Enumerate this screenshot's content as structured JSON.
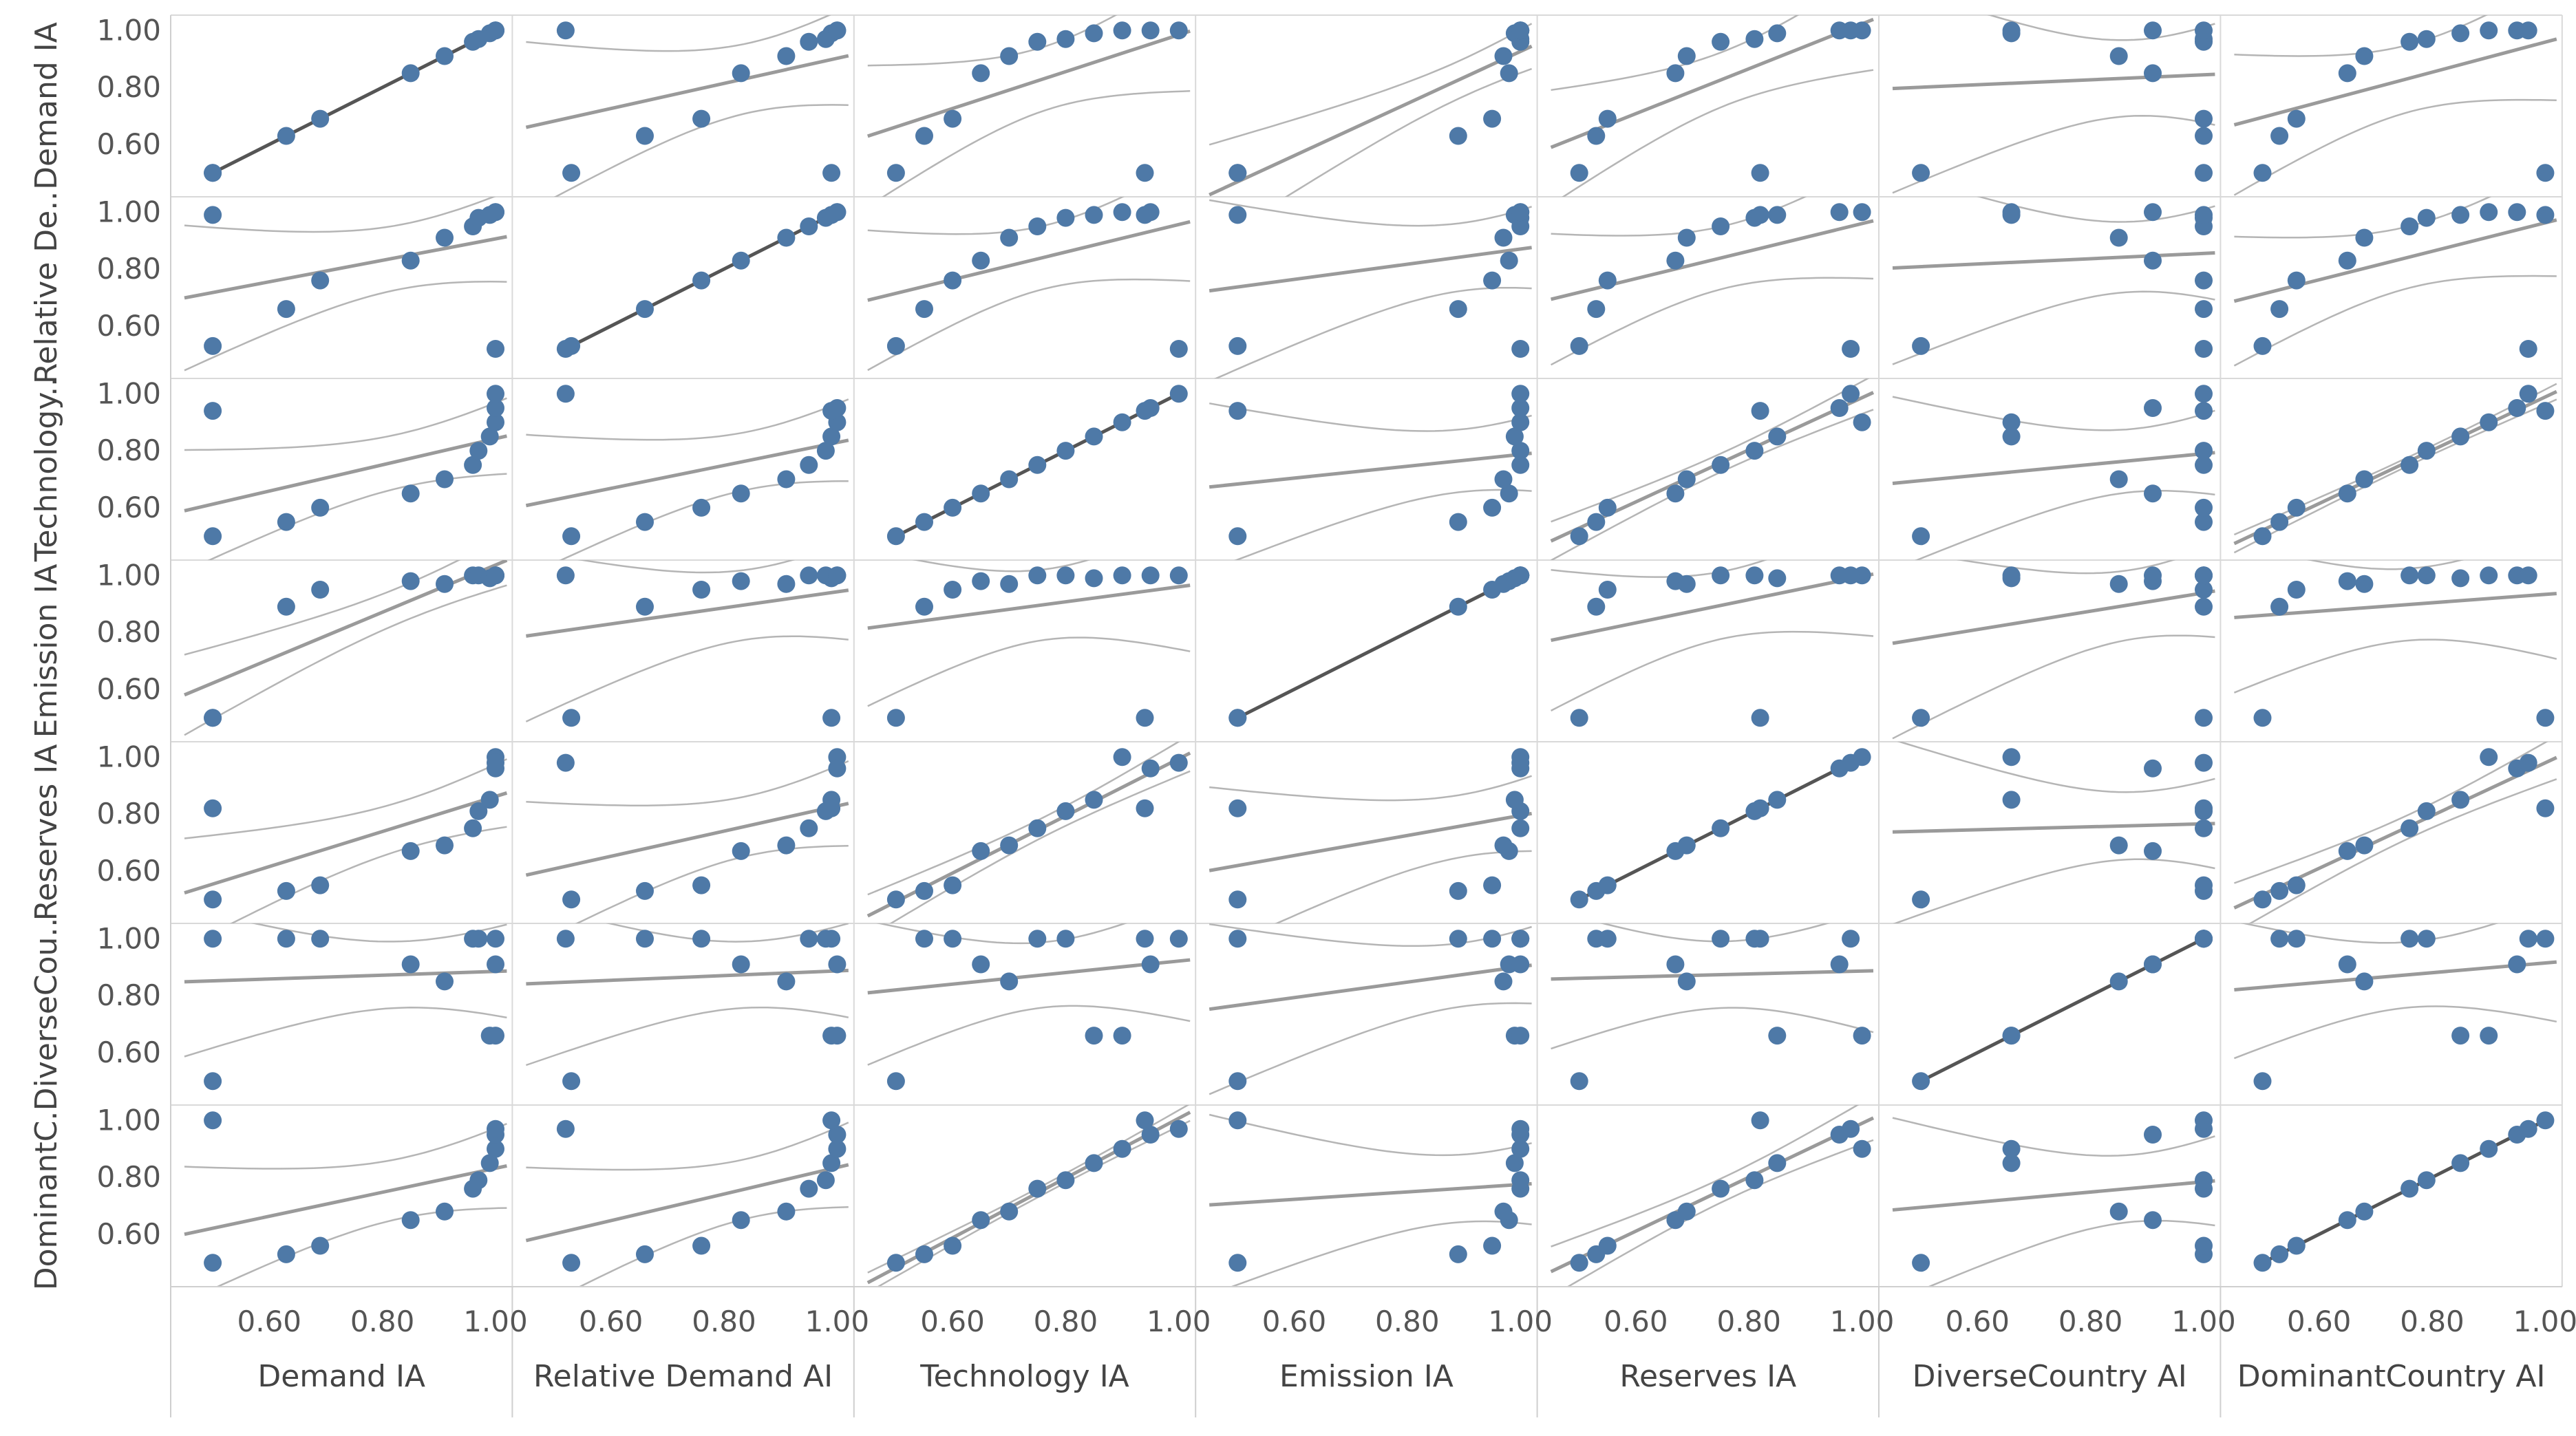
{
  "chart_data": {
    "type": "scatter",
    "subtype": "scatterplot-matrix",
    "title": "",
    "variables": [
      {
        "name": "Demand IA",
        "row_label": "Demand IA"
      },
      {
        "name": "Relative Demand AI",
        "row_label": "Relative De.."
      },
      {
        "name": "Technology IA",
        "row_label": "Technology.."
      },
      {
        "name": "Emission IA",
        "row_label": "Emission IA"
      },
      {
        "name": "Reserves IA",
        "row_label": "Reserves IA"
      },
      {
        "name": "DiverseCountry AI",
        "row_label": "DiverseCou.."
      },
      {
        "name": "DominantCountry AI",
        "row_label": "DominantC.."
      }
    ],
    "x_tick_labels": [
      "0.60",
      "0.80",
      "1.00"
    ],
    "y_tick_labels": [
      "1.00",
      "0.80",
      "0.60"
    ],
    "axis_range": [
      0.45,
      1.02
    ],
    "trend_line": "linear with 95% confidence bands",
    "colors": {
      "point": "#4e79a7",
      "trend": "#9a9a9a",
      "trend_diagonal": "#555555",
      "band": "#b5b5b5",
      "grid": "#d9d9d9",
      "border": "#cfcfcf"
    },
    "observations": [
      {
        "id": 1,
        "values": [
          0.5,
          0.53,
          0.5,
          0.5,
          0.5,
          0.5,
          0.5
        ]
      },
      {
        "id": 2,
        "values": [
          0.63,
          0.66,
          0.55,
          0.89,
          0.53,
          1.0,
          0.53
        ]
      },
      {
        "id": 3,
        "values": [
          0.69,
          0.76,
          0.6,
          0.95,
          0.55,
          1.0,
          0.56
        ]
      },
      {
        "id": 4,
        "values": [
          0.85,
          0.83,
          0.65,
          0.98,
          0.67,
          0.91,
          0.65
        ]
      },
      {
        "id": 5,
        "values": [
          0.91,
          0.91,
          0.7,
          0.97,
          0.69,
          0.85,
          0.68
        ]
      },
      {
        "id": 6,
        "values": [
          0.96,
          0.95,
          0.75,
          1.0,
          0.75,
          1.0,
          0.76
        ]
      },
      {
        "id": 7,
        "values": [
          0.97,
          0.98,
          0.8,
          1.0,
          0.81,
          1.0,
          0.79
        ]
      },
      {
        "id": 8,
        "values": [
          0.99,
          0.99,
          0.85,
          0.99,
          0.85,
          0.66,
          0.85
        ]
      },
      {
        "id": 9,
        "values": [
          1.0,
          1.0,
          0.9,
          1.0,
          1.0,
          0.66,
          0.9
        ]
      },
      {
        "id": 10,
        "values": [
          1.0,
          1.0,
          0.95,
          1.0,
          0.96,
          0.91,
          0.95
        ]
      },
      {
        "id": 11,
        "values": [
          1.0,
          0.52,
          1.0,
          1.0,
          0.98,
          1.0,
          0.97
        ]
      },
      {
        "id": 12,
        "values": [
          0.5,
          0.99,
          0.94,
          0.5,
          0.82,
          1.0,
          1.0
        ]
      }
    ]
  }
}
